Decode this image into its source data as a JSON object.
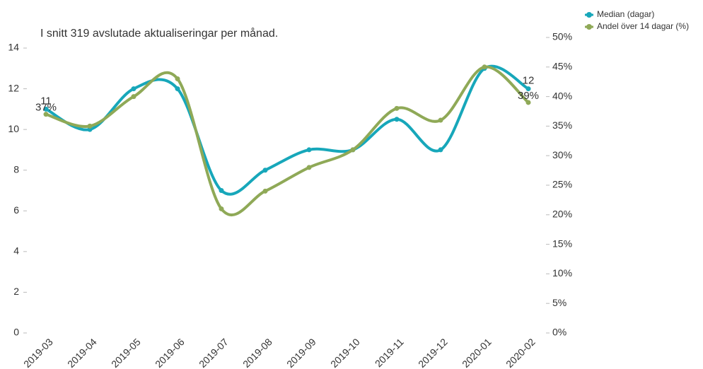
{
  "chart_data": {
    "type": "line",
    "title": "I snitt 319 avslutade aktualiseringar per månad.",
    "categories": [
      "2019-03",
      "2019-04",
      "2019-05",
      "2019-06",
      "2019-07",
      "2019-08",
      "2019-09",
      "2019-10",
      "2019-11",
      "2019-12",
      "2020-01",
      "2020-02"
    ],
    "series": [
      {
        "name": "Median (dagar)",
        "color": "#17a7ba",
        "values": [
          11,
          10,
          12,
          12,
          7,
          8,
          9,
          9,
          10.5,
          9,
          13,
          12
        ],
        "value_labels": [
          "11",
          null,
          null,
          null,
          null,
          null,
          null,
          null,
          null,
          null,
          null,
          "12"
        ]
      },
      {
        "name": "Andel över 14 dagar (%)",
        "color": "#8fa957",
        "axis": "y2",
        "values": [
          37,
          35,
          40,
          43,
          21,
          24,
          28,
          31,
          38,
          36,
          45,
          39
        ],
        "value_labels": [
          "37%",
          null,
          null,
          null,
          null,
          null,
          null,
          null,
          null,
          null,
          null,
          "39%"
        ]
      }
    ],
    "ylim": [
      0,
      14
    ],
    "yticks": [
      0,
      2,
      4,
      6,
      8,
      10,
      12,
      14
    ],
    "y2lim": [
      0,
      50
    ],
    "y2ticks": [
      {
        "value": 0,
        "label": "0%"
      },
      {
        "value": 5,
        "label": "5%"
      },
      {
        "value": 10,
        "label": "10%"
      },
      {
        "value": 15,
        "label": "15%"
      },
      {
        "value": 20,
        "label": "20%"
      },
      {
        "value": 25,
        "label": "25%"
      },
      {
        "value": 30,
        "label": "30%"
      },
      {
        "value": 35,
        "label": "35%"
      },
      {
        "value": 40,
        "label": "40%"
      },
      {
        "value": 45,
        "label": "45%"
      },
      {
        "value": 50,
        "label": "50%"
      }
    ],
    "grid": false,
    "legend": "top-right"
  }
}
